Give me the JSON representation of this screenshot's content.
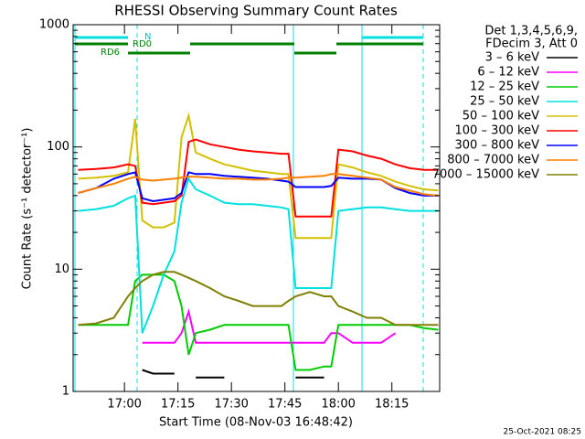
{
  "chart_data": {
    "type": "line",
    "title": "RHESSI Observing Summary Count Rates",
    "xlabel": "Start Time (08-Nov-03 16:48:42)",
    "ylabel": "Count Rate (s⁻¹ detector⁻¹)",
    "legend_title": [
      "Det 1,3,4,5,6,9,",
      "FDecim 3, Att 0"
    ],
    "footer": "25-Oct-2021 08:25",
    "annotations": [
      "N",
      "RD0",
      "RD6"
    ],
    "log_y": true,
    "xlim": [
      45.6,
      148.4
    ],
    "xticks": [
      {
        "value": 60,
        "label": "17:00"
      },
      {
        "value": 75,
        "label": "17:15"
      },
      {
        "value": 90,
        "label": "17:30"
      },
      {
        "value": 105,
        "label": "17:45"
      },
      {
        "value": 120,
        "label": "18:00"
      },
      {
        "value": 135,
        "label": "18:15"
      }
    ],
    "ylim": [
      1,
      1000
    ],
    "yticks": [
      1,
      10,
      100,
      1000
    ],
    "x": [
      47,
      52,
      57,
      61,
      63,
      65,
      68,
      71,
      74,
      76,
      78,
      80,
      84,
      88,
      92,
      96,
      100,
      104,
      106,
      108,
      112,
      116,
      118,
      120,
      124,
      128,
      132,
      136,
      140,
      144,
      148
    ],
    "series": [
      {
        "name": "3 – 6 keV",
        "color": "#000000",
        "values": [
          null,
          null,
          null,
          null,
          null,
          1.5,
          1.4,
          1.4,
          1.4,
          null,
          null,
          1.3,
          1.3,
          1.3,
          null,
          null,
          null,
          null,
          null,
          1.3,
          1.3,
          1.3,
          null,
          null,
          null,
          null,
          null,
          null,
          null,
          null,
          null
        ]
      },
      {
        "name": "6 – 12 keV",
        "color": "#ff00ff",
        "values": [
          null,
          null,
          null,
          null,
          null,
          2.5,
          2.5,
          2.5,
          2.5,
          3,
          4.5,
          2.5,
          2.5,
          2.5,
          2.5,
          2.5,
          2.5,
          2.5,
          2.5,
          2.5,
          2.5,
          2.5,
          3,
          3,
          2.5,
          2.5,
          2.5,
          3,
          null,
          null,
          null
        ]
      },
      {
        "name": "12 – 25 keV",
        "color": "#00cc00",
        "values": [
          3.5,
          3.5,
          3.5,
          3.5,
          8,
          9,
          9,
          9,
          8,
          5,
          2,
          3,
          3.2,
          3.5,
          3.5,
          3.5,
          3.5,
          3.5,
          3.5,
          1.5,
          1.5,
          1.6,
          1.6,
          3.5,
          3.5,
          3.5,
          3.5,
          3.5,
          3.5,
          3.3,
          3.2
        ]
      },
      {
        "name": "25 – 50 keV",
        "color": "#00e0e0",
        "values": [
          30,
          31,
          33,
          38,
          40,
          3,
          5,
          9,
          14,
          35,
          55,
          45,
          40,
          35,
          34,
          34,
          33,
          32,
          31,
          7,
          7,
          7,
          7,
          30,
          31,
          32,
          32,
          31,
          30,
          30,
          30
        ]
      },
      {
        "name": "50 – 100 keV",
        "color": "#d4c000",
        "values": [
          55,
          56,
          58,
          62,
          170,
          25,
          22,
          22,
          24,
          120,
          180,
          90,
          80,
          72,
          68,
          64,
          62,
          60,
          60,
          18,
          18,
          18,
          18,
          72,
          68,
          62,
          58,
          52,
          48,
          45,
          44
        ]
      },
      {
        "name": "100 – 300 keV",
        "color": "#ff0000",
        "values": [
          65,
          66,
          68,
          72,
          70,
          35,
          34,
          35,
          36,
          40,
          110,
          115,
          105,
          100,
          95,
          92,
          90,
          88,
          88,
          27,
          27,
          27,
          27,
          95,
          92,
          85,
          80,
          72,
          67,
          65,
          65
        ]
      },
      {
        "name": "300 – 800 keV",
        "color": "#0000ff",
        "values": [
          42,
          46,
          55,
          60,
          62,
          38,
          36,
          37,
          38,
          42,
          62,
          60,
          60,
          58,
          57,
          56,
          55,
          53,
          52,
          47,
          47,
          47,
          48,
          56,
          55,
          55,
          54,
          46,
          42,
          40,
          40
        ]
      },
      {
        "name": "800 – 7000 keV",
        "color": "#ff8000",
        "values": [
          42,
          46,
          50,
          55,
          57,
          54,
          53,
          54,
          55,
          56,
          57,
          57,
          56,
          55,
          55,
          54,
          54,
          55,
          56,
          56,
          57,
          58,
          60,
          60,
          58,
          56,
          54,
          47,
          44,
          41,
          40
        ]
      },
      {
        "name": "7000 – 15000 keV",
        "color": "#808000",
        "values": [
          3.5,
          3.6,
          4,
          6,
          7,
          8,
          9,
          9.5,
          9.5,
          9,
          8.5,
          8,
          7,
          6,
          5.5,
          5,
          5,
          5,
          5.5,
          6,
          6.5,
          6,
          6,
          5,
          4.5,
          4,
          4,
          3.5,
          3.5,
          3.5,
          3.5
        ]
      }
    ]
  }
}
